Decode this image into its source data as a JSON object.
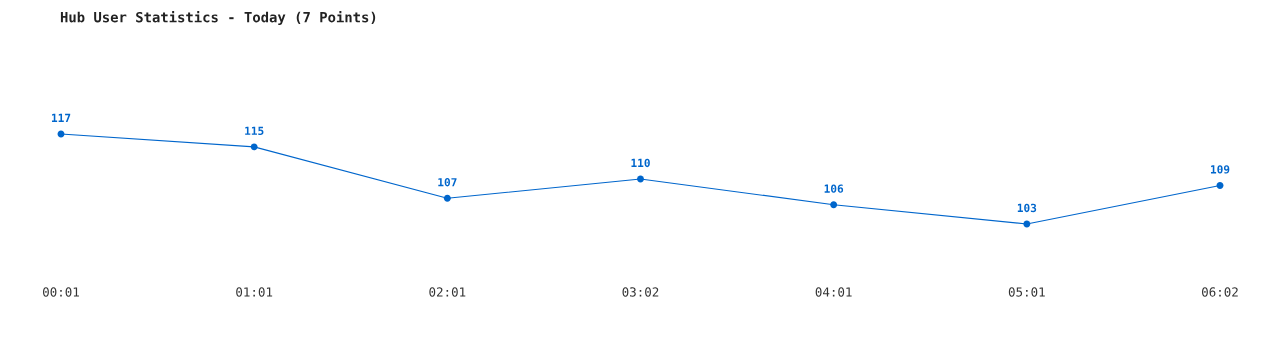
{
  "chart_data": {
    "type": "line",
    "title": "Hub User Statistics - Today (7 Points)",
    "categories": [
      "00:01",
      "01:01",
      "02:01",
      "03:02",
      "04:01",
      "05:01",
      "06:02"
    ],
    "series": [
      {
        "color": "#0066cc",
        "values": [
          117,
          115,
          107,
          110,
          106,
          103,
          109
        ]
      }
    ],
    "data_labels": true,
    "marker": "circle",
    "line_style": "solid",
    "grid": false
  }
}
